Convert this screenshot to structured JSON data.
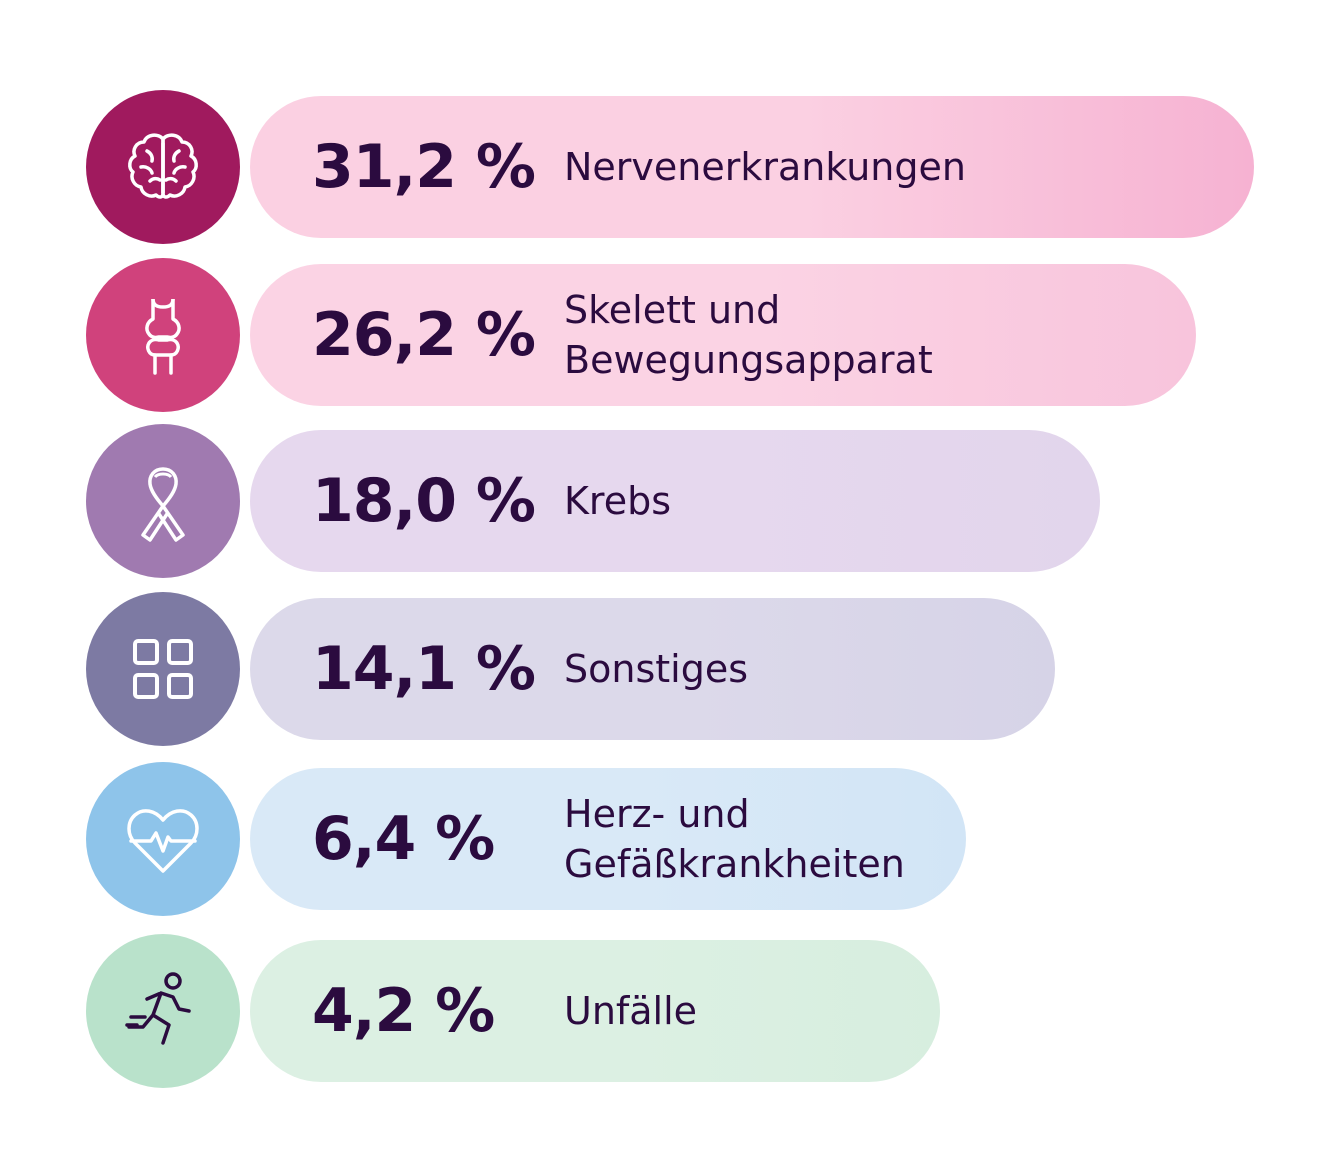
{
  "chart_data": {
    "type": "bar",
    "orientation": "horizontal",
    "categories": [
      "Nervenerkrankungen",
      "Skelett und\nBewegungsapparat",
      "Krebs",
      "Sonstiges",
      "Herz- und\nGefäßkrankheiten",
      "Unfälle"
    ],
    "values": [
      31.2,
      26.2,
      18.0,
      14.1,
      6.4,
      4.2
    ],
    "value_labels": [
      "31,2 %",
      "26,2 %",
      "18,0 %",
      "14,1 %",
      "6,4 %",
      "4,2 %"
    ],
    "unit": "%",
    "icons": [
      "brain-icon",
      "bone-joint-icon",
      "awareness-ribbon-icon",
      "grid-icon",
      "heartbeat-icon",
      "running-person-icon"
    ],
    "icon_colors": [
      "#a01a5e",
      "#d0427c",
      "#a07ab0",
      "#7d7aa3",
      "#8ec4ea",
      "#b9e2cb"
    ],
    "bar_colors": [
      [
        "#fbd0e2",
        "#f6b2d2"
      ],
      [
        "#fbd3e4",
        "#f8c4dc"
      ],
      [
        "#e6d8ee",
        "#e2d5ec"
      ],
      [
        "#dcd9ea",
        "#d6d3e7"
      ],
      [
        "#d9e9f7",
        "#d2e5f6"
      ],
      [
        "#dcf0e3",
        "#d7eedf"
      ]
    ],
    "icon_stroke_colors": [
      "#ffffff",
      "#ffffff",
      "#ffffff",
      "#ffffff",
      "#ffffff",
      "#2b0b3f"
    ]
  }
}
